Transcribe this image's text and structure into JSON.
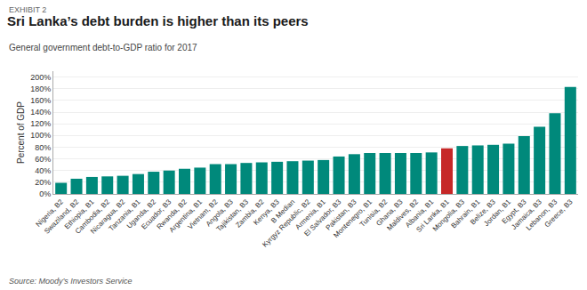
{
  "chart_data": {
    "type": "bar",
    "exhibit": "EXHIBIT 2",
    "title": "Sri Lanka’s debt burden is higher than its peers",
    "subtitle": "General government debt-to-GDP ratio for 2017",
    "ylabel": "Percent of GDP",
    "source": "Source: Moody’s Investors Service",
    "categories": [
      "Nigeria, B2",
      "Swaziland, B2",
      "Ethiopia, B1",
      "Cambodia, B2",
      "Nicaragua, B2",
      "Tanzania, B1",
      "Uganda, B2",
      "Ecuador, B3",
      "Rwanda, B2",
      "Argentina, B1",
      "Vietnam, B2",
      "Angola, B3",
      "Tajikistan, B3",
      "Zambia, B2",
      "Kenya, B3",
      "B Median",
      "Kyrgyz Republic, B2",
      "Armenia, B1",
      "El Salvador, B3",
      "Pakistan, B3",
      "Montenegro, B1",
      "Tunisia, B2",
      "Ghana, B3",
      "Maldives, B2",
      "Albania, B1",
      "Sri Lanka, B1",
      "Mongolia, B3",
      "Bahrain, B1",
      "Belize, B3",
      "Jordan, B1",
      "Egypt, B3",
      "Jamaica, B3",
      "Lebanon, B3",
      "Greece, B3"
    ],
    "values": [
      19,
      26,
      29,
      30,
      31,
      34,
      38,
      40,
      43,
      45,
      51,
      51,
      53,
      54,
      55,
      56,
      57,
      58,
      64,
      68,
      70,
      70,
      70,
      70,
      71,
      78,
      82,
      83,
      84,
      86,
      99,
      115,
      138,
      183
    ],
    "colors": [
      "#00897B",
      "#00897B",
      "#00897B",
      "#00897B",
      "#00897B",
      "#00897B",
      "#00897B",
      "#00897B",
      "#00897B",
      "#00897B",
      "#00897B",
      "#00897B",
      "#00897B",
      "#00897B",
      "#00897B",
      "#00897B",
      "#00897B",
      "#00897B",
      "#00897B",
      "#00897B",
      "#00897B",
      "#00897B",
      "#00897B",
      "#00897B",
      "#00897B",
      "#C62828",
      "#00897B",
      "#00897B",
      "#00897B",
      "#00897B",
      "#00897B",
      "#00897B",
      "#00897B",
      "#00897B"
    ],
    "ylim": [
      0,
      210
    ],
    "yticks": [
      {
        "value": 0,
        "label": "0%"
      },
      {
        "value": 20,
        "label": "20%"
      },
      {
        "value": 40,
        "label": "40%"
      },
      {
        "value": 60,
        "label": "60%"
      },
      {
        "value": 80,
        "label": "80%"
      },
      {
        "value": 100,
        "label": "100%"
      },
      {
        "value": 120,
        "label": "120%"
      },
      {
        "value": 140,
        "label": "140%"
      },
      {
        "value": 160,
        "label": "160%"
      },
      {
        "value": 180,
        "label": "180%"
      },
      {
        "value": 200,
        "label": "200%"
      }
    ],
    "grid": true
  }
}
